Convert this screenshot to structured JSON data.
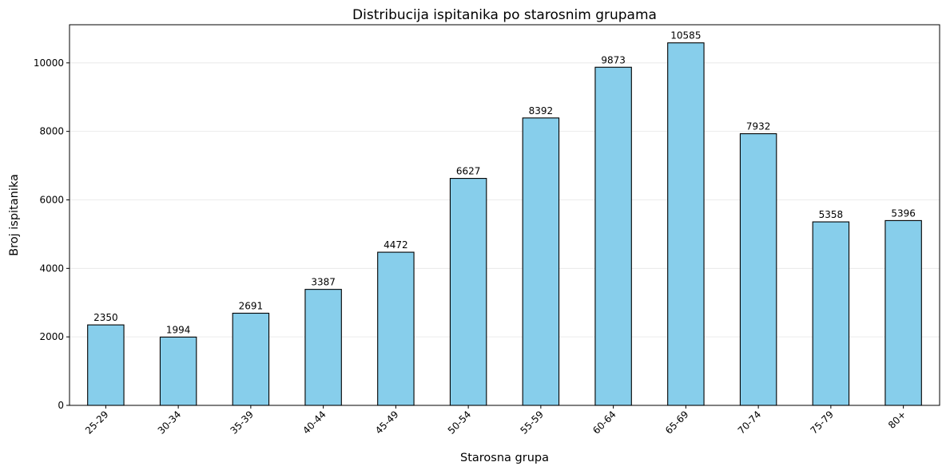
{
  "chart_data": {
    "type": "bar",
    "title": "Distribucija ispitanika po starosnim grupama",
    "xlabel": "Starosna grupa",
    "ylabel": "Broj ispitanika",
    "categories": [
      "25-29",
      "30-34",
      "35-39",
      "40-44",
      "45-49",
      "50-54",
      "55-59",
      "60-64",
      "65-69",
      "70-74",
      "75-79",
      "80+"
    ],
    "values": [
      2350,
      1994,
      2691,
      3387,
      4472,
      6627,
      8392,
      9873,
      10585,
      7932,
      5358,
      5396
    ],
    "ylim": [
      0,
      11114
    ],
    "yticks": [
      0,
      2000,
      4000,
      6000,
      8000,
      10000
    ],
    "grid": "y",
    "legend": "none",
    "bar_color": "#87ceeb",
    "edge_color": "#000000",
    "grid_color": "#e6e6e6"
  }
}
